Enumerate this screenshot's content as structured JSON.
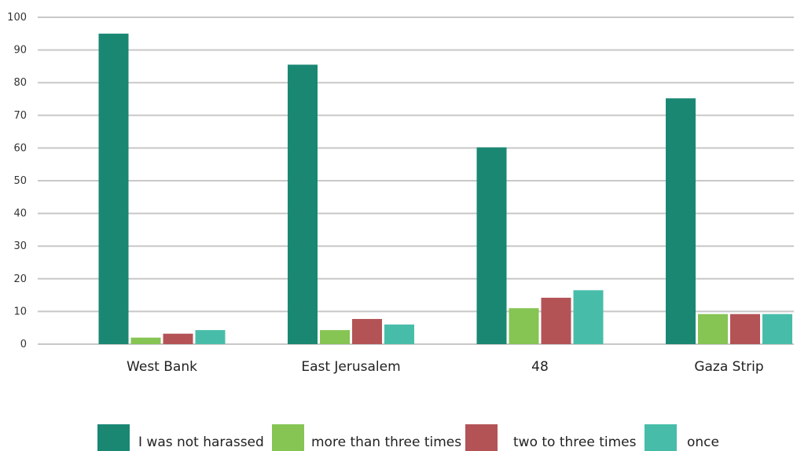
{
  "chart_data": {
    "type": "bar",
    "categories": [
      "West Bank",
      "East Jerusalem",
      "48",
      "Gaza Strip"
    ],
    "series": [
      {
        "name": "I was not harassed",
        "values": [
          95,
          85.5,
          60.2,
          75.2
        ],
        "color": "#1a8773"
      },
      {
        "name": "more than three times",
        "values": [
          2,
          4.3,
          11,
          9.2
        ],
        "color": "#86c454"
      },
      {
        "name": "two to three times",
        "values": [
          3.2,
          7.7,
          14.2,
          9.2
        ],
        "color": "#b35356"
      },
      {
        "name": "once",
        "values": [
          4.3,
          6,
          16.5,
          9.2
        ],
        "color": "#47bda9"
      }
    ],
    "ylim": [
      0,
      100
    ],
    "yticks": [
      0,
      10,
      20,
      30,
      40,
      50,
      60,
      70,
      80,
      90,
      100
    ],
    "grid": true,
    "legend_position": "bottom"
  }
}
